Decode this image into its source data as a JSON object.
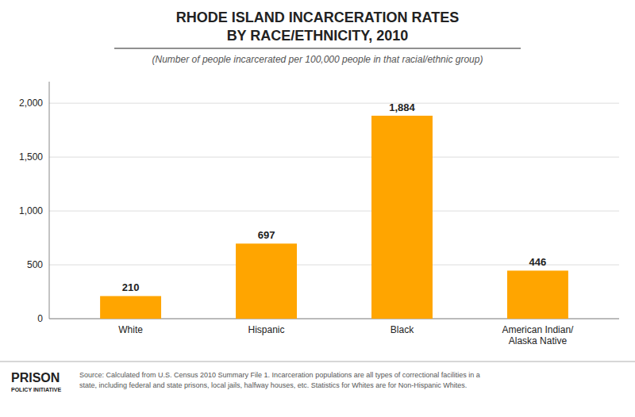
{
  "chart_data": {
    "type": "bar",
    "title": "RHODE ISLAND INCARCERATION RATES\nBY RACE/ETHNICITY, 2010",
    "subtitle": "(Number of people incarcerated per 100,000 people in that racial/ethnic group)",
    "categories": [
      "White",
      "Hispanic",
      "Black",
      "American Indian/\nAlaska Native"
    ],
    "values": [
      210,
      697,
      1884,
      446
    ],
    "value_labels": [
      "210",
      "697",
      "1,884",
      "446"
    ],
    "color": "#FFA500",
    "ylim": [
      0,
      2200
    ],
    "yticks": [
      0,
      500,
      {
        "value": 1000,
        "label": "1,000"
      },
      {
        "value": 1500,
        "label": "1,500"
      },
      {
        "value": 2000,
        "label": "2,000"
      }
    ],
    "grid": true,
    "data_labels": true,
    "annotations": [
      "PRISON",
      "POLICY INITIATIVE",
      "Source: Calculated from U.S. Census 2010 Summary File 1. Incarceration populations are all types of correctional facilities in a\nstate, including federal and state prisons, local jails, halfway houses, etc. Statistics for Whites are for Non-Hispanic Whites."
    ]
  }
}
